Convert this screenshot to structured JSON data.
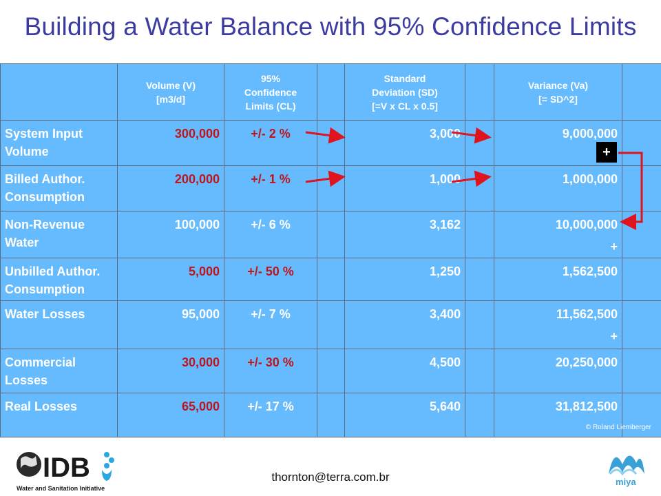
{
  "slide": {
    "title": "Building a Water Balance with 95% Confidence Limits",
    "footer_email": "thornton@terra.com.br",
    "copyright": "© Roland Liemberger",
    "plus": "+"
  },
  "table": {
    "headers": {
      "volume_line1": "Volume (V)",
      "volume_line2": "[m3/d]",
      "cl_line1": "95%",
      "cl_line2": "Confidence",
      "cl_line3": "Limits (CL)",
      "sd_line1": "Standard",
      "sd_line2": "Deviation (SD)",
      "sd_line3": "[=V x CL x 0.5]",
      "var_line1": "Variance (Va)",
      "var_line2": "[= SD^2]"
    },
    "rows": [
      {
        "label": "System Input Volume",
        "volume": "300,000",
        "cl": "+/- 2 %",
        "sd": "3,000",
        "variance": "9,000,000",
        "red_volume": true
      },
      {
        "label": "Billed Author. Consumption",
        "volume": "200,000",
        "cl": "+/- 1 %",
        "sd": "1,000",
        "variance": "1,000,000",
        "red_volume": true
      },
      {
        "label": "Non-Revenue Water",
        "volume": "100,000",
        "cl": "+/- 6 %",
        "sd": "3,162",
        "variance": "10,000,000",
        "red_volume": false
      },
      {
        "label": "Unbilled Author. Consumption",
        "volume": "5,000",
        "cl": "+/- 50 %",
        "sd": "1,250",
        "variance": "1,562,500",
        "red_volume": true
      },
      {
        "label": "Water Losses",
        "volume": "95,000",
        "cl": "+/- 7 %",
        "sd": "3,400",
        "variance": "11,562,500",
        "red_volume": false
      },
      {
        "label": "Commercial Losses",
        "volume": "30,000",
        "cl": "+/- 30 %",
        "sd": "4,500",
        "variance": "20,250,000",
        "red_volume": true
      },
      {
        "label": "Real Losses",
        "volume": "65,000",
        "cl": "+/- 17 %",
        "sd": "5,640",
        "variance": "31,812,500",
        "red_volume": true
      }
    ]
  },
  "colors": {
    "title": "#3c3ca0",
    "table_bg": "#66bbff",
    "highlight": "#c0151b",
    "arrow": "#e0141e"
  },
  "logos": {
    "left": {
      "text": "IDB",
      "subtitle": "Water and Sanitation Initiative"
    },
    "right": {
      "text": "miya"
    }
  }
}
